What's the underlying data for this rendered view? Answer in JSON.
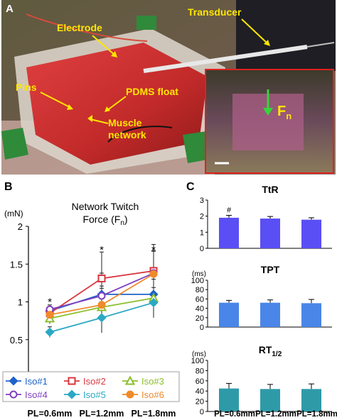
{
  "panelA": {
    "letter": "A",
    "labels": {
      "transducer": "Transducer",
      "electrode": "Electrode",
      "pins": "Pins",
      "pdms_float": "PDMS float",
      "muscle_network_1": "Muscle",
      "muscle_network_2": "network",
      "inset_force": "F",
      "inset_force_sub": "n"
    }
  },
  "panelB": {
    "letter": "B",
    "title_line1": "Network Twitch",
    "title_line2": "Force (F",
    "title_sub": "n",
    "title_close": ")",
    "yunit": "(mN)",
    "star": "*"
  },
  "panelC": {
    "letter": "C",
    "unit_ms": "(ms)",
    "hash": "#"
  },
  "chart_data": [
    {
      "type": "line",
      "title": "Network Twitch Force (Fn)",
      "ylabel": "(mN)",
      "xlabel": "",
      "categories": [
        "PL=0.6mm",
        "PL=1.2mm",
        "PL=1.8mm"
      ],
      "ylim": [
        0,
        2
      ],
      "yticks": [
        "0",
        "0.5",
        "1",
        "1.5",
        "2"
      ],
      "significance": [
        "*",
        "*",
        "*"
      ],
      "series": [
        {
          "name": "Iso#1",
          "color": "#1f63c8",
          "marker": "diamond",
          "values": [
            0.88,
            1.1,
            1.1
          ]
        },
        {
          "name": "Iso#2",
          "color": "#d9363e",
          "marker": "square",
          "values": [
            0.85,
            1.31,
            1.41
          ]
        },
        {
          "name": "Iso#3",
          "color": "#8bbf2b",
          "marker": "triangle",
          "values": [
            0.78,
            0.93,
            1.05
          ]
        },
        {
          "name": "Iso#4",
          "color": "#7f3fbf",
          "marker": "circle",
          "values": [
            0.9,
            1.08,
            1.38
          ]
        },
        {
          "name": "Iso#5",
          "color": "#2aa8c4",
          "marker": "diamond",
          "values": [
            0.6,
            0.79,
            0.99
          ]
        },
        {
          "name": "Iso#6",
          "color": "#f08a2a",
          "marker": "circle",
          "values": [
            0.83,
            0.96,
            1.37
          ]
        }
      ]
    },
    {
      "type": "bar",
      "title": "TtR",
      "ylabel": "",
      "categories": [
        "PL=0.6mm",
        "PL=1.2mm",
        "PL=1.8mm"
      ],
      "values": [
        1.9,
        1.85,
        1.78
      ],
      "errors": [
        0.15,
        0.13,
        0.12
      ],
      "ylim": [
        0,
        3
      ],
      "yticks": [
        "0",
        "1",
        "2",
        "3"
      ],
      "color": "#5a4ef5",
      "annotation": "#"
    },
    {
      "type": "bar",
      "title": "TPT",
      "ylabel": "(ms)",
      "categories": [
        "PL=0.6mm",
        "PL=1.2mm",
        "PL=1.8mm"
      ],
      "values": [
        52,
        52,
        51
      ],
      "errors": [
        5,
        6,
        8
      ],
      "ylim": [
        0,
        100
      ],
      "yticks": [
        "0",
        "20",
        "40",
        "60",
        "80",
        "100"
      ],
      "color": "#4a86e8"
    },
    {
      "type": "bar",
      "title": "RT1/2",
      "ylabel": "(ms)",
      "categories": [
        "PL=0.6mm",
        "PL=1.2mm",
        "PL=1.8mm"
      ],
      "values": [
        45,
        44,
        44
      ],
      "errors": [
        10,
        9,
        10
      ],
      "ylim": [
        0,
        100
      ],
      "yticks": [
        "0",
        "20",
        "40",
        "60",
        "80",
        "100"
      ],
      "color": "#2e9aa8"
    }
  ]
}
